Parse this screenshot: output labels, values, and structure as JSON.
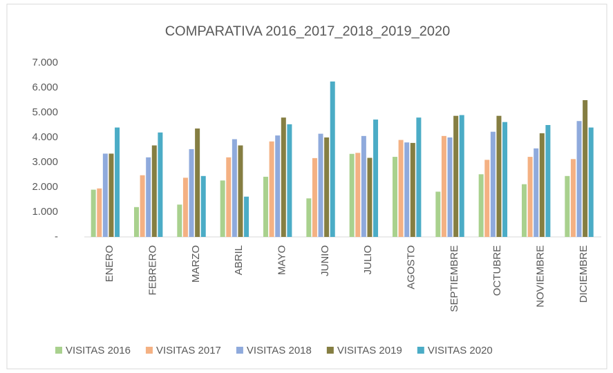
{
  "chart_data": {
    "type": "bar",
    "title": "COMPARATIVA 2016_2017_2018_2019_2020",
    "categories": [
      "ENERO",
      "FEBRERO",
      "MARZO",
      "ABRIL",
      "MAYO",
      "JUNIO",
      "JULIO",
      "AGOSTO",
      "SEPTIEMBRE",
      "OCTUBRE",
      "NOVIEMBRE",
      "DICIEMBRE"
    ],
    "series": [
      {
        "name": "VISITAS 2016",
        "color": "#a9d18e",
        "values": [
          1900,
          1200,
          1300,
          2270,
          2420,
          1550,
          3340,
          3220,
          1820,
          2520,
          2120,
          2450
        ]
      },
      {
        "name": "VISITAS 2017",
        "color": "#f4b183",
        "values": [
          1950,
          2480,
          2380,
          3200,
          3840,
          3170,
          3380,
          3900,
          4060,
          3100,
          3220,
          3130
        ]
      },
      {
        "name": "VISITAS 2018",
        "color": "#8faadc",
        "values": [
          3350,
          3200,
          3530,
          3930,
          4080,
          4150,
          4060,
          3800,
          4000,
          4230,
          3560,
          4660
        ]
      },
      {
        "name": "VISITAS 2019",
        "color": "#857e42",
        "values": [
          3350,
          3680,
          4360,
          3680,
          4800,
          4000,
          3180,
          3780,
          4870,
          4870,
          4170,
          5500
        ]
      },
      {
        "name": "VISITAS 2020",
        "color": "#4bacc6",
        "values": [
          4400,
          4200,
          2450,
          1620,
          4530,
          6250,
          4720,
          4800,
          4900,
          4620,
          4500,
          4400
        ]
      }
    ],
    "ylim": [
      0,
      7000
    ],
    "yticks": [
      {
        "value": 0,
        "label": "-"
      },
      {
        "value": 1000,
        "label": "1.000"
      },
      {
        "value": 2000,
        "label": "2.000"
      },
      {
        "value": 3000,
        "label": "3.000"
      },
      {
        "value": 4000,
        "label": "4.000"
      },
      {
        "value": 5000,
        "label": "5.000"
      },
      {
        "value": 6000,
        "label": "6.000"
      },
      {
        "value": 7000,
        "label": "7.000"
      }
    ],
    "grid": false,
    "legend": "bottom"
  }
}
